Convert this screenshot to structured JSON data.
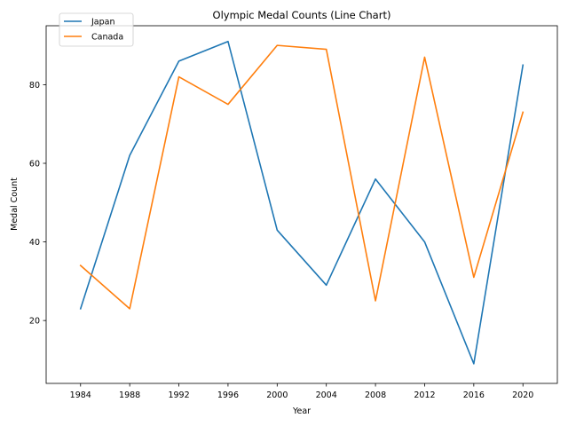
{
  "chart_data": {
    "type": "line",
    "title": "Olympic Medal Counts (Line Chart)",
    "xlabel": "Year",
    "ylabel": "Medal Count",
    "x": [
      1984,
      1988,
      1992,
      1996,
      2000,
      2004,
      2008,
      2012,
      2016,
      2020
    ],
    "x_ticks": [
      "1984",
      "1988",
      "1992",
      "1996",
      "2000",
      "2004",
      "2008",
      "2012",
      "2016",
      "2020"
    ],
    "y_ticks": [
      20,
      40,
      60,
      80
    ],
    "xlim": [
      1981.2,
      2022.8
    ],
    "ylim": [
      4,
      95
    ],
    "grid": false,
    "legend_position": "upper-left",
    "series": [
      {
        "name": "Japan",
        "color": "#1f77b4",
        "values": [
          23,
          62,
          86,
          91,
          43,
          29,
          56,
          40,
          9,
          85
        ]
      },
      {
        "name": "Canada",
        "color": "#ff7f0e",
        "values": [
          34,
          23,
          82,
          75,
          90,
          89,
          25,
          87,
          31,
          73
        ]
      }
    ]
  }
}
